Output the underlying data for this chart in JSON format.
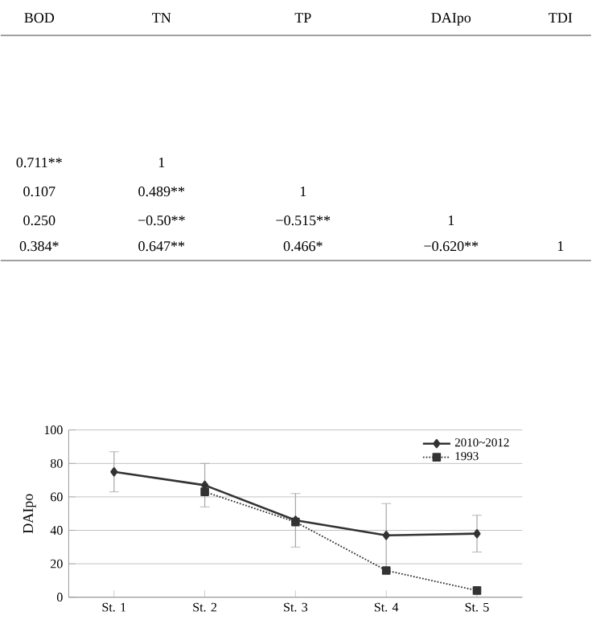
{
  "chart_data": {
    "type": "line",
    "annotations": [
      "BOD",
      "TN",
      "TP",
      "DAIpo",
      "TDI",
      "0.711**",
      "1",
      "0.107",
      "0.489**",
      "1",
      "0.250",
      "−0.50**",
      "−0.515**",
      "1",
      "0.384*",
      "0.647**",
      "0.466*",
      "−0.620**",
      "1"
    ],
    "ylabel": "DAIpo",
    "categories": [
      "St. 1",
      "St. 2",
      "St. 3",
      "St. 4",
      "St. 5"
    ],
    "series": [
      {
        "name": "2010~2012",
        "color": "#333333",
        "marker": "diamond",
        "line_style": "solid",
        "values": [
          75,
          67,
          46,
          37,
          38
        ],
        "errors": [
          [
            63,
            87
          ],
          [
            54,
            80
          ],
          [
            30,
            62
          ],
          [
            17,
            56
          ],
          [
            27,
            49
          ]
        ]
      },
      {
        "name": "1993",
        "color": "#333333",
        "marker": "square",
        "line_style": "dotted",
        "values": [
          null,
          63,
          45,
          16,
          4
        ]
      }
    ],
    "ylim": [
      0,
      100
    ],
    "yticks": [
      0,
      20,
      40,
      60,
      80,
      100
    ],
    "grid": "y",
    "legend": "top right"
  }
}
